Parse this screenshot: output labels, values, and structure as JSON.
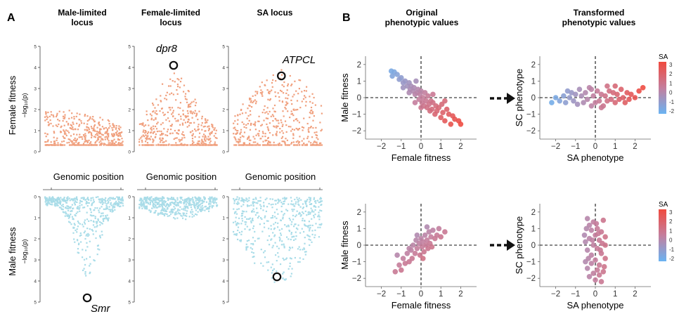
{
  "panel_labels": {
    "a": "A",
    "b": "B"
  },
  "colors": {
    "female_points": "#F0A07E",
    "male_points": "#A9DCE8",
    "sa_low": "#6AB3F2",
    "sa_mid": "#C47E9D",
    "sa_high": "#F04A3E"
  },
  "panel_a": {
    "column_titles": [
      [
        "Male-limited",
        "locus"
      ],
      [
        "Female-limited",
        "locus"
      ],
      [
        "SA locus"
      ]
    ],
    "female_row_label": "Female fitness",
    "male_row_label": "Male fitness",
    "ylabel_math": "−log₁₀(p)",
    "x_label": "Genomic position",
    "y_ticks": [
      "0",
      "1",
      "2",
      "3",
      "4",
      "5"
    ],
    "gene_labels": {
      "col2_top": "dpr8",
      "col3_top": "ATPCL",
      "col1_bottom": "Smr"
    }
  },
  "panel_b": {
    "column_titles": [
      [
        "Original",
        "phenotypic values"
      ],
      [
        "Transformed",
        "phenotypic values"
      ]
    ],
    "left_xlabel": "Female fitness",
    "left_ylabel": "Male fitness",
    "right_xlabel": "SA phenotype",
    "right_ylabel": "SC phenotype",
    "x_ticks": [
      "−2",
      "−1",
      "0",
      "1",
      "2"
    ],
    "y_ticks": [
      "−2",
      "−1",
      "0",
      "1",
      "2"
    ],
    "legend_title": "SA",
    "legend_ticks": [
      "3",
      "2",
      "1",
      "0",
      "-1",
      "-2"
    ]
  },
  "chart_data": [
    {
      "type": "scatter",
      "panel": "A",
      "row": "Female fitness",
      "column": "Male-limited locus",
      "xlabel": "Genomic position",
      "ylabel": "−log10(p)",
      "ylim": [
        0,
        5
      ],
      "peak": 1.9,
      "peak_position": 0.2,
      "baseline": 0.8,
      "spread": 0.6
    },
    {
      "type": "scatter",
      "panel": "A",
      "row": "Female fitness",
      "column": "Female-limited locus",
      "xlabel": "Genomic position",
      "ylabel": "−log10(p)",
      "ylim": [
        0,
        5
      ],
      "peak": 3.7,
      "peak_position": 0.45,
      "baseline": 0.8,
      "spread": 0.25,
      "highlight": {
        "label": "dpr8",
        "y": 4.1
      }
    },
    {
      "type": "scatter",
      "panel": "A",
      "row": "Female fitness",
      "column": "SA locus",
      "xlabel": "Genomic position",
      "ylabel": "−log10(p)",
      "ylim": [
        0,
        5
      ],
      "peak": 3.8,
      "peak_position": 0.55,
      "baseline": 0.8,
      "spread": 0.35,
      "highlight": {
        "label": "ATPCL",
        "y": 3.6
      }
    },
    {
      "type": "scatter",
      "panel": "A",
      "row": "Male fitness",
      "column": "Male-limited locus",
      "xlabel": "Genomic position",
      "ylabel": "−log10(p)",
      "ylim": [
        0,
        5
      ],
      "inverted": true,
      "peak": 3.8,
      "peak_position": 0.55,
      "baseline": 0.3,
      "spread": 0.15,
      "highlight": {
        "label": "Smr",
        "y": 4.8
      }
    },
    {
      "type": "scatter",
      "panel": "A",
      "row": "Male fitness",
      "column": "Female-limited locus",
      "xlabel": "Genomic position",
      "ylabel": "−log10(p)",
      "ylim": [
        0,
        5
      ],
      "inverted": true,
      "peak": 1.0,
      "peak_position": 0.5,
      "baseline": 0.3,
      "spread": 0.3
    },
    {
      "type": "scatter",
      "panel": "A",
      "row": "Male fitness",
      "column": "SA locus",
      "xlabel": "Genomic position",
      "ylabel": "−log10(p)",
      "ylim": [
        0,
        5
      ],
      "inverted": true,
      "peak": 4.0,
      "peak_position": 0.5,
      "baseline": 0.5,
      "spread": 0.35,
      "highlight": {
        "label": "",
        "y": 3.8
      }
    },
    {
      "type": "scatter",
      "panel": "B",
      "title": "Original phenotypic values",
      "xlabel": "Female fitness",
      "ylabel": "Male fitness",
      "xlim": [
        -2.8,
        2.8
      ],
      "ylim": [
        -2.5,
        2.5
      ],
      "points": [
        [
          -1.5,
          1.6
        ],
        [
          -1.35,
          1.55
        ],
        [
          -1.45,
          1.3
        ],
        [
          -1.2,
          1.4
        ],
        [
          -1.1,
          1.1
        ],
        [
          -1.0,
          1.2
        ],
        [
          -0.9,
          0.9
        ],
        [
          -0.8,
          1.0
        ],
        [
          -0.7,
          0.7
        ],
        [
          -0.6,
          0.9
        ],
        [
          -0.55,
          0.5
        ],
        [
          -0.5,
          0.7
        ],
        [
          -0.4,
          0.4
        ],
        [
          -0.35,
          0.6
        ],
        [
          -0.3,
          0.2
        ],
        [
          -0.25,
          1.0
        ],
        [
          -0.2,
          0.3
        ],
        [
          -0.15,
          0.5
        ],
        [
          -0.1,
          -0.1
        ],
        [
          -0.05,
          0.2
        ],
        [
          0.0,
          0.4
        ],
        [
          0.05,
          -0.3
        ],
        [
          0.1,
          0.0
        ],
        [
          0.15,
          -0.5
        ],
        [
          0.2,
          0.3
        ],
        [
          0.25,
          -0.2
        ],
        [
          0.3,
          -0.6
        ],
        [
          0.35,
          0.1
        ],
        [
          0.4,
          -0.4
        ],
        [
          0.45,
          -0.8
        ],
        [
          0.5,
          -0.2
        ],
        [
          0.55,
          -0.7
        ],
        [
          0.6,
          -0.3
        ],
        [
          0.7,
          -1.0
        ],
        [
          0.75,
          -0.5
        ],
        [
          0.8,
          -0.8
        ],
        [
          0.9,
          -0.6
        ],
        [
          1.0,
          -1.2
        ],
        [
          1.05,
          -0.4
        ],
        [
          1.1,
          -0.9
        ],
        [
          1.2,
          -1.4
        ],
        [
          1.3,
          -0.7
        ],
        [
          1.4,
          -1.0
        ],
        [
          1.5,
          -1.6
        ],
        [
          1.6,
          -1.1
        ],
        [
          1.7,
          -1.3
        ],
        [
          1.9,
          -1.4
        ],
        [
          2.0,
          -1.6
        ],
        [
          -0.9,
          0.6
        ],
        [
          -0.3,
          -0.3
        ],
        [
          0.0,
          -0.6
        ],
        [
          0.6,
          0.2
        ],
        [
          1.2,
          -0.2
        ],
        [
          -0.6,
          0.3
        ]
      ],
      "color_by": "SA"
    },
    {
      "type": "scatter",
      "panel": "B",
      "title": "Transformed phenotypic values",
      "xlabel": "SA phenotype",
      "ylabel": "SC phenotype",
      "xlim": [
        -2.8,
        2.8
      ],
      "ylim": [
        -2.5,
        2.5
      ],
      "points": [
        [
          -2.2,
          -0.3
        ],
        [
          -2.0,
          0.0
        ],
        [
          -1.8,
          -0.2
        ],
        [
          -1.6,
          0.1
        ],
        [
          -1.5,
          -0.3
        ],
        [
          -1.3,
          0.0
        ],
        [
          -1.2,
          0.3
        ],
        [
          -1.1,
          -0.2
        ],
        [
          -1.0,
          0.2
        ],
        [
          -0.9,
          -0.4
        ],
        [
          -0.8,
          0.5
        ],
        [
          -0.7,
          0.1
        ],
        [
          -0.6,
          -0.3
        ],
        [
          -0.5,
          0.3
        ],
        [
          -0.4,
          -0.1
        ],
        [
          -0.3,
          0.6
        ],
        [
          -0.2,
          -0.5
        ],
        [
          -0.1,
          0.1
        ],
        [
          0.0,
          -0.3
        ],
        [
          0.1,
          0.4
        ],
        [
          0.2,
          -0.2
        ],
        [
          0.3,
          0.2
        ],
        [
          0.4,
          -0.5
        ],
        [
          0.5,
          0.1
        ],
        [
          0.6,
          -0.2
        ],
        [
          0.7,
          0.4
        ],
        [
          0.8,
          -0.1
        ],
        [
          0.9,
          0.3
        ],
        [
          1.0,
          -0.3
        ],
        [
          1.1,
          0.2
        ],
        [
          1.2,
          -0.1
        ],
        [
          1.3,
          0.5
        ],
        [
          1.4,
          0.0
        ],
        [
          1.5,
          -0.3
        ],
        [
          1.6,
          0.3
        ],
        [
          1.7,
          -0.1
        ],
        [
          1.8,
          0.2
        ],
        [
          2.0,
          0.0
        ],
        [
          2.2,
          0.4
        ],
        [
          2.4,
          0.6
        ],
        [
          0.6,
          0.7
        ],
        [
          -0.2,
          0.5
        ],
        [
          1.0,
          0.7
        ],
        [
          -1.4,
          0.4
        ],
        [
          0.3,
          -0.6
        ]
      ],
      "color_by": "SA"
    },
    {
      "type": "scatter",
      "panel": "B",
      "title": "Original phenotypic values",
      "xlabel": "Female fitness",
      "ylabel": "Male fitness",
      "xlim": [
        -2.8,
        2.8
      ],
      "ylim": [
        -2.5,
        2.5
      ],
      "points": [
        [
          -1.3,
          -1.6
        ],
        [
          -1.1,
          -1.2
        ],
        [
          -1.0,
          -1.5
        ],
        [
          -0.9,
          -0.8
        ],
        [
          -0.8,
          -1.1
        ],
        [
          -0.7,
          -0.5
        ],
        [
          -0.6,
          -1.0
        ],
        [
          -0.5,
          -0.3
        ],
        [
          -0.45,
          -0.8
        ],
        [
          -0.4,
          0.0
        ],
        [
          -0.3,
          -0.5
        ],
        [
          -0.25,
          0.3
        ],
        [
          -0.2,
          -0.2
        ],
        [
          -0.1,
          0.1
        ],
        [
          -0.05,
          -0.6
        ],
        [
          0.0,
          0.4
        ],
        [
          0.05,
          -0.1
        ],
        [
          0.1,
          0.2
        ],
        [
          0.15,
          -0.4
        ],
        [
          0.2,
          0.6
        ],
        [
          0.25,
          0.0
        ],
        [
          0.3,
          0.3
        ],
        [
          0.35,
          -0.2
        ],
        [
          0.4,
          0.8
        ],
        [
          0.45,
          0.1
        ],
        [
          0.5,
          0.5
        ],
        [
          0.55,
          -0.1
        ],
        [
          0.6,
          0.9
        ],
        [
          0.7,
          0.4
        ],
        [
          0.8,
          0.6
        ],
        [
          0.9,
          1.0
        ],
        [
          1.0,
          0.5
        ],
        [
          1.2,
          0.8
        ],
        [
          -0.2,
          0.6
        ],
        [
          0.3,
          1.1
        ],
        [
          -0.6,
          -0.2
        ],
        [
          -1.2,
          -0.6
        ],
        [
          0.1,
          -0.8
        ]
      ],
      "color_by": "SA"
    },
    {
      "type": "scatter",
      "panel": "B",
      "title": "Transformed phenotypic values",
      "xlabel": "SA phenotype",
      "ylabel": "SC phenotype",
      "xlim": [
        -2.8,
        2.8
      ],
      "ylim": [
        -2.5,
        2.5
      ],
      "points": [
        [
          -0.4,
          1.6
        ],
        [
          -0.3,
          1.2
        ],
        [
          -0.2,
          0.9
        ],
        [
          -0.1,
          1.4
        ],
        [
          0.0,
          0.6
        ],
        [
          0.1,
          1.0
        ],
        [
          0.2,
          0.3
        ],
        [
          0.3,
          0.8
        ],
        [
          0.4,
          1.5
        ],
        [
          0.5,
          0.5
        ],
        [
          -0.5,
          0.2
        ],
        [
          -0.4,
          -0.3
        ],
        [
          -0.3,
          0.4
        ],
        [
          -0.2,
          -0.6
        ],
        [
          -0.1,
          0.0
        ],
        [
          0.0,
          -0.9
        ],
        [
          0.1,
          -0.2
        ],
        [
          0.2,
          -1.2
        ],
        [
          0.3,
          -0.5
        ],
        [
          0.4,
          -1.6
        ],
        [
          0.5,
          -0.8
        ],
        [
          -0.5,
          -1.0
        ],
        [
          -0.4,
          -1.4
        ],
        [
          -0.3,
          -1.9
        ],
        [
          -0.2,
          -1.1
        ],
        [
          -0.1,
          -1.7
        ],
        [
          0.0,
          -2.1
        ],
        [
          0.1,
          -1.5
        ],
        [
          0.2,
          -1.8
        ],
        [
          0.3,
          -2.2
        ],
        [
          0.45,
          -1.3
        ],
        [
          0.5,
          0.0
        ],
        [
          -0.55,
          0.6
        ],
        [
          -0.45,
          1.0
        ],
        [
          0.35,
          0.1
        ],
        [
          -0.15,
          0.3
        ],
        [
          0.15,
          0.7
        ],
        [
          -0.35,
          -0.8
        ],
        [
          0.25,
          -0.3
        ],
        [
          0.05,
          1.3
        ]
      ],
      "color_by": "SA"
    }
  ]
}
